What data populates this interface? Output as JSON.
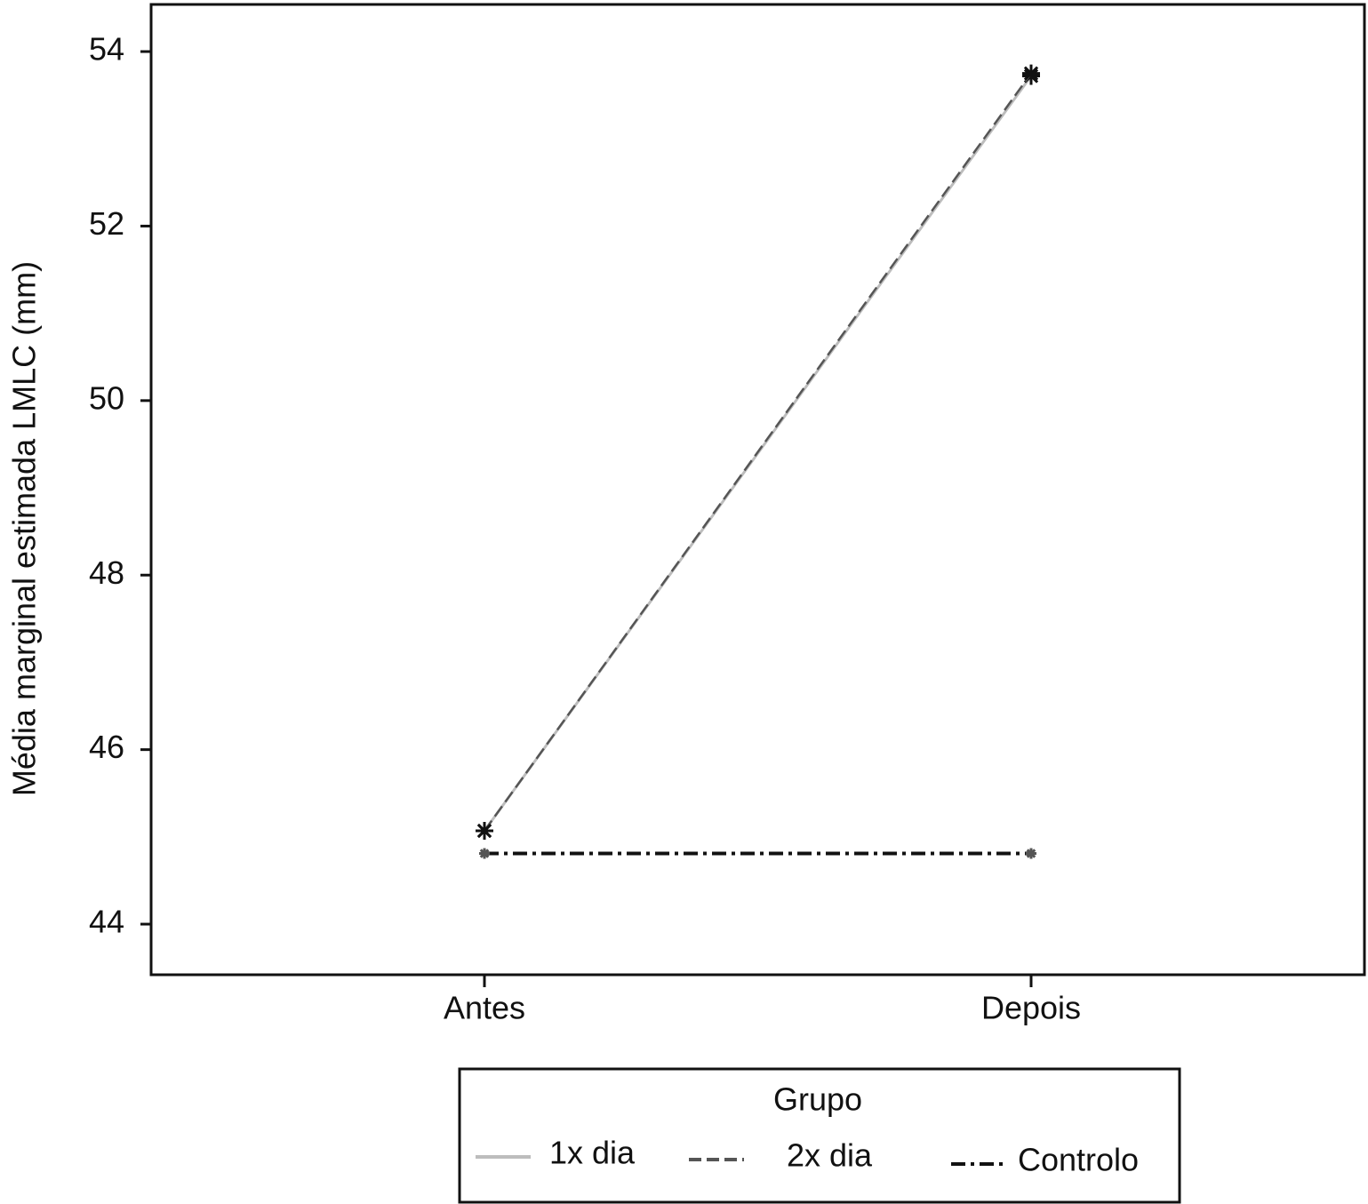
{
  "chart_data": {
    "type": "line",
    "y_label": "Média marginal estimada LMLC (mm)",
    "categories": [
      "Antes",
      "Depois"
    ],
    "series": [
      {
        "name": "1x dia",
        "color": "#bdbdbd",
        "values": [
          45.07,
          53.72
        ]
      },
      {
        "name": "2x dia",
        "color": "#555555",
        "values": [
          45.07,
          53.75
        ]
      },
      {
        "name": "Controlo",
        "color": "#111111",
        "values": [
          44.81,
          44.81
        ]
      }
    ],
    "ylim": [
      43.42,
      54.54
    ],
    "yticks": [
      44,
      46,
      48,
      50,
      52,
      54
    ],
    "legend_title": "Grupo",
    "legend_position": "bottom"
  }
}
